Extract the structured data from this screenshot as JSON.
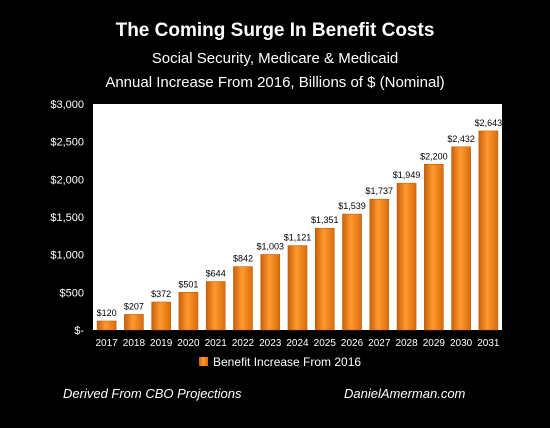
{
  "chart_data": {
    "type": "bar",
    "title": "The Coming Surge In Benefit Costs",
    "subtitle_lines": [
      "Social Security, Medicare & Medicaid",
      "Annual Increase From 2016, Billions of $ (Nominal)"
    ],
    "categories": [
      "2017",
      "2018",
      "2019",
      "2020",
      "2021",
      "2022",
      "2023",
      "2024",
      "2025",
      "2026",
      "2027",
      "2028",
      "2029",
      "2030",
      "2031"
    ],
    "series": [
      {
        "name": "Benefit Increase From 2016",
        "values": [
          120,
          207,
          372,
          501,
          644,
          842,
          1003,
          1121,
          1351,
          1539,
          1737,
          1949,
          2200,
          2432,
          2643
        ],
        "data_labels": [
          "$120",
          "$207",
          "$372",
          "$501",
          "$644",
          "$842",
          "$1,003",
          "$1,121",
          "$1,351",
          "$1,539",
          "$1,737",
          "$1,949",
          "$2,200",
          "$2,432",
          "$2,643"
        ],
        "color": "#F0840C"
      }
    ],
    "ylim": [
      0,
      3000
    ],
    "yticks": [
      0,
      500,
      1000,
      1500,
      2000,
      2500,
      3000
    ],
    "ytick_labels": [
      "$-",
      "$500",
      "$1,000",
      "$1,500",
      "$2,000",
      "$2,500",
      "$3,000"
    ],
    "xlabel": "",
    "ylabel": "",
    "grid": false,
    "legend_position": "bottom",
    "colors": {
      "background": "#000000",
      "plot_background": "#FFFFFF",
      "bar": "#F0840C"
    }
  },
  "footer": {
    "source": "Derived From CBO Projections",
    "site": "DanielAmerman.com"
  }
}
